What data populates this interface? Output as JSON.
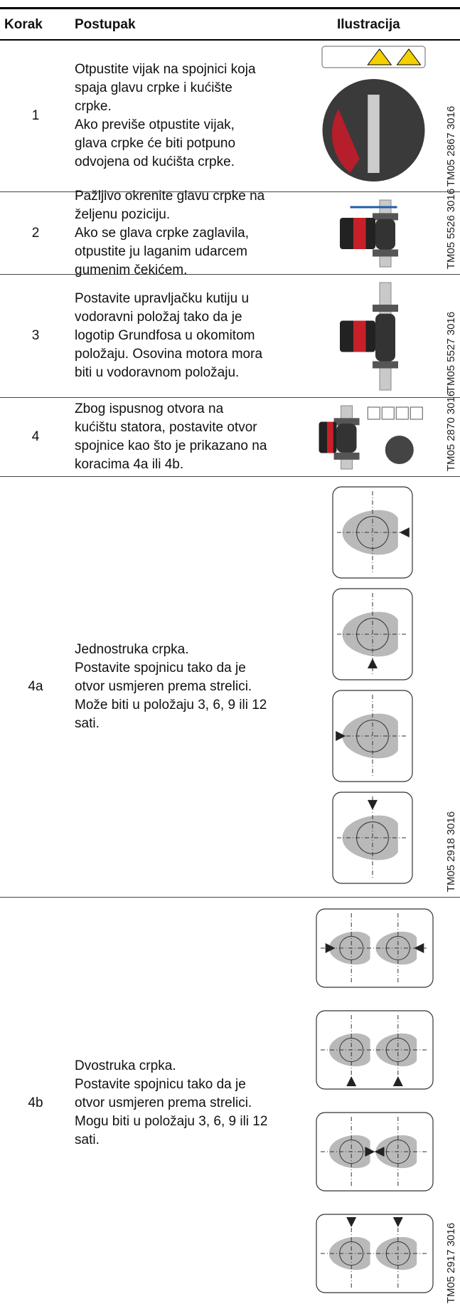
{
  "header": {
    "columns": [
      "Korak",
      "Postupak",
      "Ilustracija"
    ]
  },
  "rows": [
    {
      "step": "1",
      "text": [
        "Otpustite vijak na spojnici koja",
        "spaja glavu crpke i kućište",
        "crpke.",
        "Ako previše otpustite vijak,",
        "glava crpke će biti potpuno",
        "odvojena od kućišta crpke."
      ],
      "figure_code": "TM05 2867 3016"
    },
    {
      "step": "2",
      "text": [
        "Pažljivo okrenite glavu crpke na",
        "željenu poziciju.",
        "Ako se glava crpke zaglavila,",
        "otpustite ju laganim udarcem",
        "gumenim čekićem."
      ],
      "figure_code": "TM05 5526 3016"
    },
    {
      "step": "3",
      "text": [
        "Postavite upravljačku kutiju u",
        "vodoravni položaj tako da je",
        "logotip Grundfosa u okomitom",
        "položaju. Osovina motora mora",
        "biti u vodoravnom položaju."
      ],
      "figure_code": "TM05 5527 3016"
    },
    {
      "step": "4",
      "text": [
        "Zbog ispusnog otvora na",
        "kućištu statora, postavite otvor",
        "spojnice kao što je prikazano na",
        "koracima 4a ili 4b."
      ],
      "figure_code": "TM05 2870 3016"
    },
    {
      "step": "4a",
      "text": [
        "Jednostruka crpka.",
        "Postavite spojnicu tako da je",
        "otvor usmjeren prema strelici.",
        "Može biti u položaju 3, 6, 9 ili 12",
        "sati."
      ],
      "figure_code": "TM05 2918 3016"
    },
    {
      "step": "4b",
      "text": [
        "Dvostruka crpka.",
        "Postavite spojnicu tako da je",
        "otvor usmjeren prema strelici.",
        "Mogu biti u položaju 3, 6, 9 ili 12",
        "sati."
      ],
      "figure_code": "TM05 2917 3016"
    }
  ]
}
